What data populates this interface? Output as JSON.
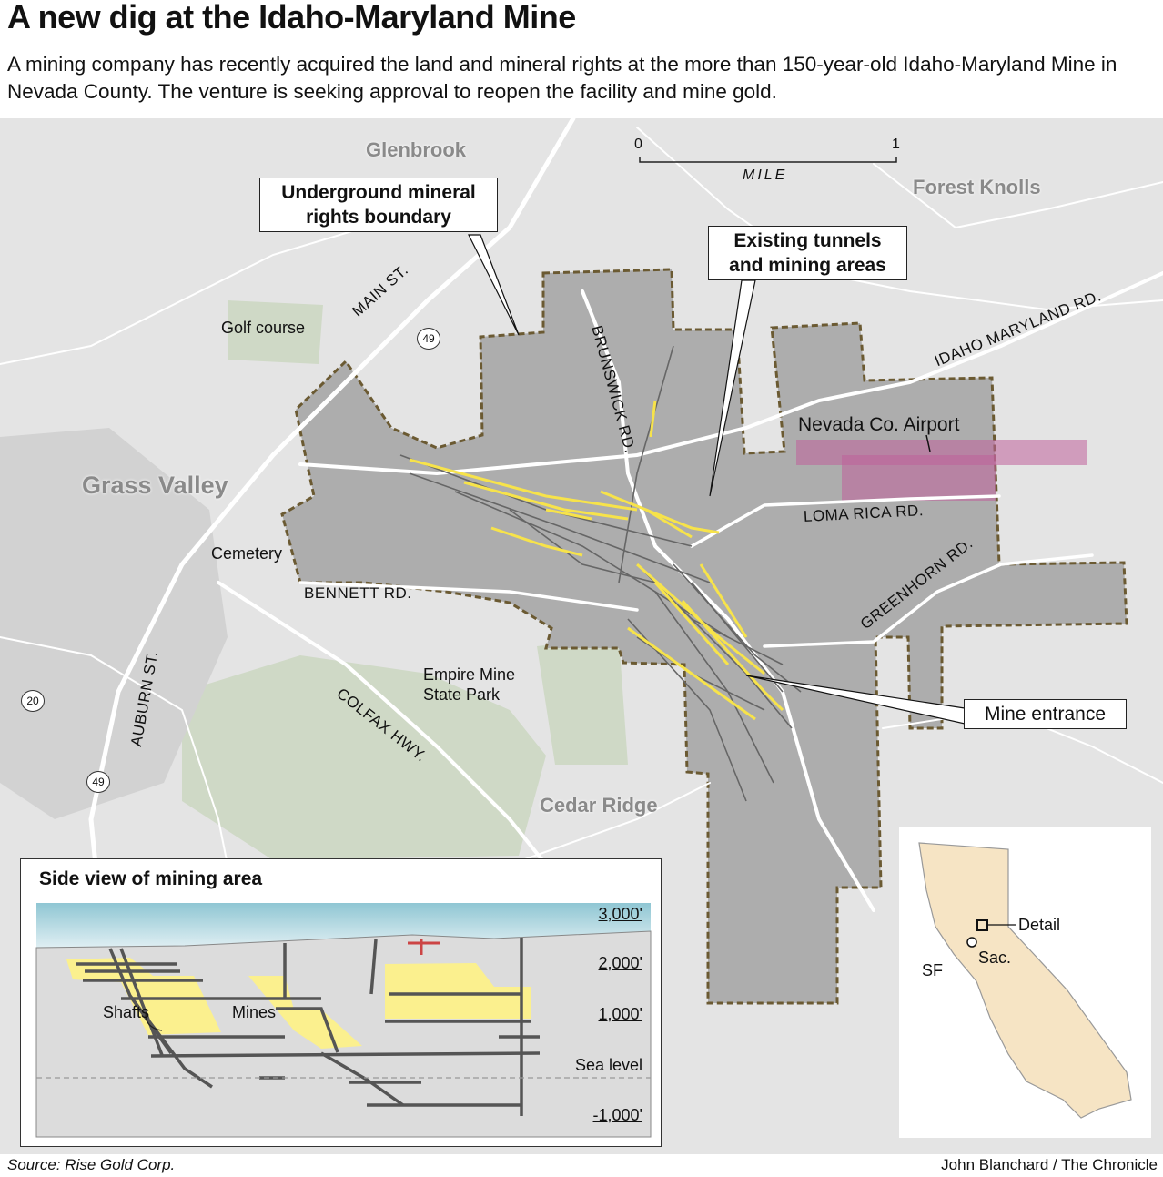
{
  "title": "A new dig at the Idaho-Maryland Mine",
  "subtitle": "A mining company has recently acquired the land and mineral rights at the more than 150-year-old Idaho-Maryland Mine in Nevada County. The venture is seeking approval to reopen the facility and mine gold.",
  "map": {
    "towns": [
      "Glenbrook",
      "Forest Knolls",
      "Grass Valley",
      "Cedar Ridge"
    ],
    "places": [
      "Golf course",
      "Cemetery",
      "Empire Mine State Park",
      "Nevada Co. Airport"
    ],
    "roads": [
      "MAIN ST.",
      "BRUNSWICK RD.",
      "IDAHO MARYLAND RD.",
      "LOMA RICA RD.",
      "GREENHORN RD.",
      "BENNETT RD.",
      "COLFAX HWY.",
      "AUBURN ST."
    ],
    "highways": [
      "49",
      "20",
      "49"
    ],
    "scale": {
      "start": "0",
      "end": "1",
      "unit": "MILE"
    },
    "callouts": {
      "boundary": "Underground mineral rights boundary",
      "tunnels": "Existing tunnels and mining areas",
      "entrance": "Mine entrance"
    },
    "colors": {
      "boundary_area": "#adadad",
      "tunnels": "#666666",
      "mines": "#f7e34a",
      "airport": "#c0609a",
      "park": "#cfd9c6",
      "background": "#e4e4e4"
    }
  },
  "side_view": {
    "title": "Side view of mining area",
    "labels": {
      "shafts": "Shafts",
      "mines": "Mines"
    },
    "elevations": [
      "3,000'",
      "2,000'",
      "1,000'",
      "Sea level",
      "-1,000'"
    ]
  },
  "inset": {
    "detail": "Detail",
    "sac": "Sac.",
    "sf": "SF"
  },
  "footer": {
    "source": "Source: Rise Gold Corp.",
    "credit": "John Blanchard / The Chronicle"
  }
}
